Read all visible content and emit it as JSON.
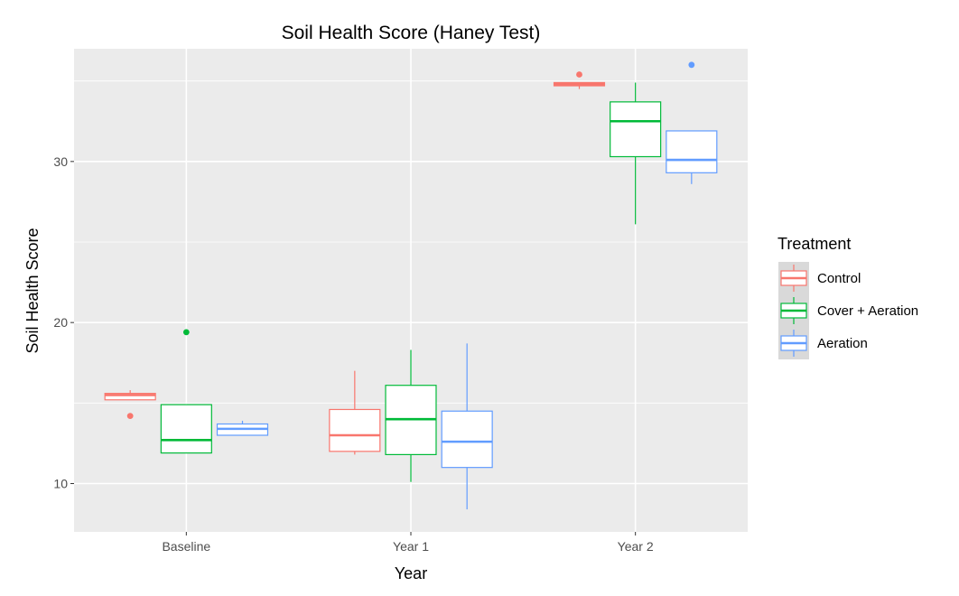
{
  "chart_data": {
    "type": "boxplot",
    "title": "Soil Health Score (Haney Test)",
    "xlabel": "Year",
    "ylabel": "Soil Health Score",
    "categories": [
      "Baseline",
      "Year 1",
      "Year 2"
    ],
    "y_ticks": [
      10,
      20,
      30
    ],
    "ylim": [
      7.0,
      37.0
    ],
    "grid": true,
    "panel_color": "#ebebeb",
    "legend": {
      "title": "Treatment",
      "placement": "right",
      "key_background": "#d9d9d9"
    },
    "series": [
      {
        "name": "Control",
        "color": "#f8766d",
        "boxes": [
          {
            "whisker_low": 15.2,
            "q1": 15.2,
            "median": 15.5,
            "q3": 15.6,
            "whisker_high": 15.8,
            "outliers": [
              14.2
            ]
          },
          {
            "whisker_low": 11.8,
            "q1": 12.0,
            "median": 13.0,
            "q3": 14.6,
            "whisker_high": 17.0,
            "outliers": []
          },
          {
            "whisker_low": 34.5,
            "q1": 34.7,
            "median": 34.8,
            "q3": 34.9,
            "whisker_high": 34.9,
            "outliers": [
              35.4
            ]
          }
        ]
      },
      {
        "name": "Cover + Aeration",
        "color": "#00ba38",
        "boxes": [
          {
            "whisker_low": 11.9,
            "q1": 11.9,
            "median": 12.7,
            "q3": 14.9,
            "whisker_high": 14.9,
            "outliers": [
              19.4
            ]
          },
          {
            "whisker_low": 10.1,
            "q1": 11.8,
            "median": 14.0,
            "q3": 16.1,
            "whisker_high": 18.3,
            "outliers": []
          },
          {
            "whisker_low": 26.1,
            "q1": 30.3,
            "median": 32.5,
            "q3": 33.7,
            "whisker_high": 34.9,
            "outliers": []
          }
        ]
      },
      {
        "name": "Aeration",
        "color": "#619cff",
        "boxes": [
          {
            "whisker_low": 13.0,
            "q1": 13.0,
            "median": 13.4,
            "q3": 13.7,
            "whisker_high": 13.9,
            "outliers": []
          },
          {
            "whisker_low": 8.4,
            "q1": 11.0,
            "median": 12.6,
            "q3": 14.5,
            "whisker_high": 18.7,
            "outliers": []
          },
          {
            "whisker_low": 28.6,
            "q1": 29.3,
            "median": 30.1,
            "q3": 31.9,
            "whisker_high": 31.9,
            "outliers": [
              36.0
            ]
          }
        ]
      }
    ]
  }
}
